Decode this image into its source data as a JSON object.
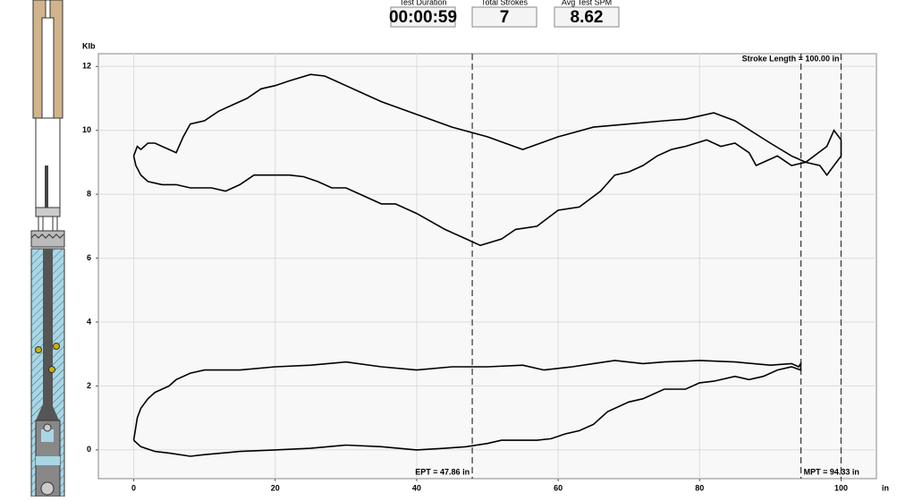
{
  "readouts": [
    {
      "label": "Test Duration",
      "value": "00:00:59"
    },
    {
      "label": "Total Strokes",
      "value": "7"
    },
    {
      "label": "Avg Test SPM",
      "value": "8.62"
    }
  ],
  "chart_data": {
    "type": "line",
    "y_label": "Klb",
    "x_label": "in",
    "xlim": [
      -5,
      105
    ],
    "ylim": [
      -0.9,
      12.4
    ],
    "xticks": [
      0,
      20,
      40,
      60,
      80,
      100
    ],
    "yticks": [
      0,
      2,
      4,
      6,
      8,
      10,
      12
    ],
    "grid": true,
    "markers": [
      {
        "value": 47.86,
        "label": "EPT = 47.86 in"
      },
      {
        "value": 94.33,
        "label": "MPT = 94.33 in"
      },
      {
        "value": 100,
        "label": "Stroke Length = 100.00 in"
      }
    ],
    "series": [
      {
        "color": "#000000",
        "x": [
          0,
          0.5,
          1,
          2,
          3,
          4,
          5,
          6,
          7,
          8,
          10,
          12,
          14,
          16,
          18,
          20,
          22,
          25,
          27,
          30,
          32,
          35,
          40,
          45,
          50,
          55,
          60,
          65,
          70,
          75,
          78,
          82,
          85,
          90,
          93,
          95,
          98,
          99,
          100,
          100,
          99,
          98,
          97,
          95,
          93,
          91,
          89,
          88,
          87,
          85,
          83,
          81,
          78,
          76,
          74,
          72,
          70,
          68,
          66,
          63,
          60,
          57,
          54,
          52,
          49,
          47,
          44,
          40,
          37,
          35,
          32,
          30,
          28,
          26,
          24,
          22,
          20,
          17,
          15,
          13,
          11,
          8,
          6,
          4,
          2,
          1,
          0.3,
          0
        ],
        "values": [
          9.2,
          9.5,
          9.4,
          9.6,
          9.6,
          9.5,
          9.4,
          9.3,
          9.8,
          10.2,
          10.3,
          10.6,
          10.8,
          11.0,
          11.3,
          11.4,
          11.55,
          11.75,
          11.7,
          11.4,
          11.2,
          10.9,
          10.5,
          10.1,
          9.8,
          9.4,
          9.8,
          10.1,
          10.2,
          10.3,
          10.35,
          10.55,
          10.3,
          9.6,
          9.2,
          9.0,
          9.5,
          10.0,
          9.7,
          9.2,
          8.9,
          8.6,
          8.9,
          9.0,
          8.9,
          9.2,
          9.0,
          8.9,
          9.3,
          9.6,
          9.5,
          9.7,
          9.5,
          9.4,
          9.2,
          8.9,
          8.7,
          8.6,
          8.1,
          7.6,
          7.5,
          7.0,
          6.9,
          6.6,
          6.4,
          6.6,
          6.9,
          7.4,
          7.7,
          7.7,
          8.0,
          8.2,
          8.2,
          8.4,
          8.55,
          8.6,
          8.6,
          8.6,
          8.3,
          8.1,
          8.2,
          8.2,
          8.3,
          8.3,
          8.4,
          8.6,
          8.9,
          9.2
        ]
      },
      {
        "color": "#000000",
        "x": [
          0,
          0.5,
          1,
          2,
          3,
          4,
          5,
          6,
          8,
          10,
          15,
          20,
          25,
          30,
          35,
          40,
          45,
          50,
          55,
          58,
          62,
          65,
          68,
          72,
          75,
          80,
          85,
          90,
          93,
          94,
          94.3,
          94.3,
          93,
          91,
          89,
          87,
          85,
          82,
          80,
          78,
          75,
          72,
          70,
          67,
          65,
          63,
          61,
          59,
          57,
          55,
          52,
          50,
          47,
          44,
          40,
          35,
          30,
          25,
          20,
          15,
          10,
          8,
          5,
          3,
          1,
          0
        ],
        "values": [
          0.3,
          1.0,
          1.3,
          1.6,
          1.8,
          1.9,
          2.0,
          2.2,
          2.4,
          2.5,
          2.5,
          2.6,
          2.65,
          2.75,
          2.6,
          2.5,
          2.6,
          2.6,
          2.65,
          2.5,
          2.6,
          2.7,
          2.8,
          2.7,
          2.75,
          2.8,
          2.75,
          2.65,
          2.7,
          2.6,
          2.7,
          2.5,
          2.6,
          2.5,
          2.3,
          2.2,
          2.3,
          2.15,
          2.1,
          1.9,
          1.9,
          1.6,
          1.5,
          1.2,
          0.8,
          0.6,
          0.5,
          0.35,
          0.3,
          0.3,
          0.3,
          0.2,
          0.1,
          0.05,
          0.0,
          0.1,
          0.15,
          0.05,
          0.0,
          -0.05,
          -0.15,
          -0.2,
          -0.1,
          -0.05,
          0.1,
          0.3
        ]
      }
    ]
  }
}
